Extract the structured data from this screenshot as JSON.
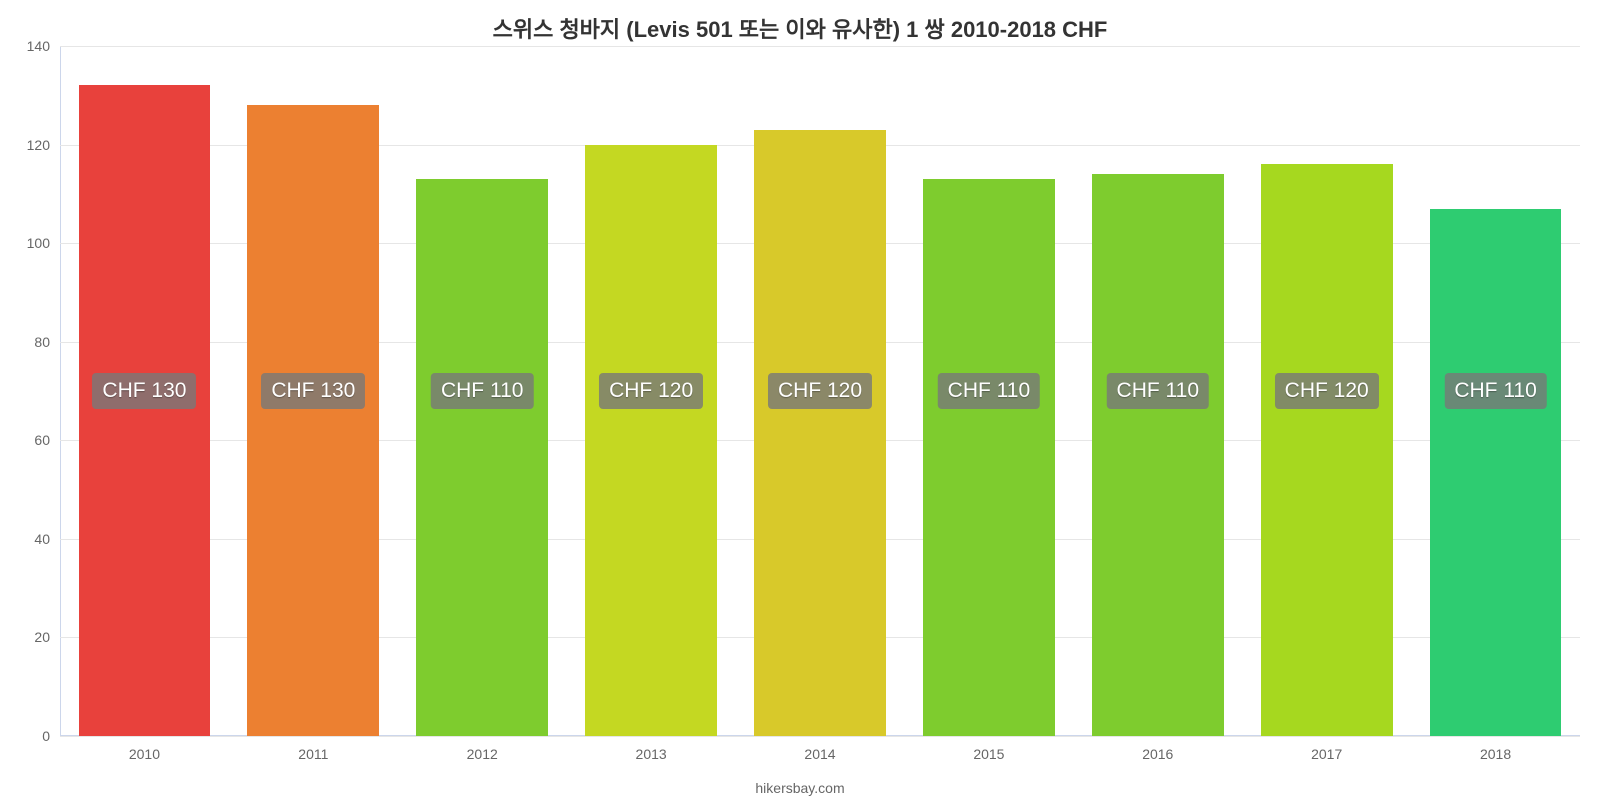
{
  "chart": {
    "type": "bar",
    "title": "스위스 청바지 (Levis 501 또는 이와 유사한) 1 쌍 2010-2018 CHF",
    "title_fontsize": 22,
    "title_color": "#333333",
    "background_color": "#ffffff",
    "grid_color": "#e6e6e6",
    "axis_line_color": "#ccd6eb",
    "ylim": [
      0,
      140
    ],
    "ytick_step": 20,
    "yticks": [
      0,
      20,
      40,
      60,
      80,
      100,
      120,
      140
    ],
    "tick_fontsize": 14,
    "tick_color": "#666666",
    "bar_width_pct": 78,
    "bar_label_bg": "rgba(120,120,120,0.8)",
    "bar_label_color": "#ffffff",
    "bar_label_fontsize": 21,
    "categories": [
      "2010",
      "2011",
      "2012",
      "2013",
      "2014",
      "2015",
      "2016",
      "2017",
      "2018"
    ],
    "values": [
      132,
      128,
      113,
      120,
      123,
      113,
      114,
      116,
      107
    ],
    "bar_labels": [
      "CHF 130",
      "CHF 130",
      "CHF 110",
      "CHF 120",
      "CHF 120",
      "CHF 110",
      "CHF 110",
      "CHF 120",
      "CHF 110"
    ],
    "bar_label_y_value": 70,
    "bar_colors": [
      "#e8413c",
      "#ec8031",
      "#7ecc2e",
      "#c4d822",
      "#d8c92a",
      "#7ecc2e",
      "#7ecc2e",
      "#a6d81f",
      "#2ecc71"
    ],
    "attribution": "hikersbay.com"
  }
}
